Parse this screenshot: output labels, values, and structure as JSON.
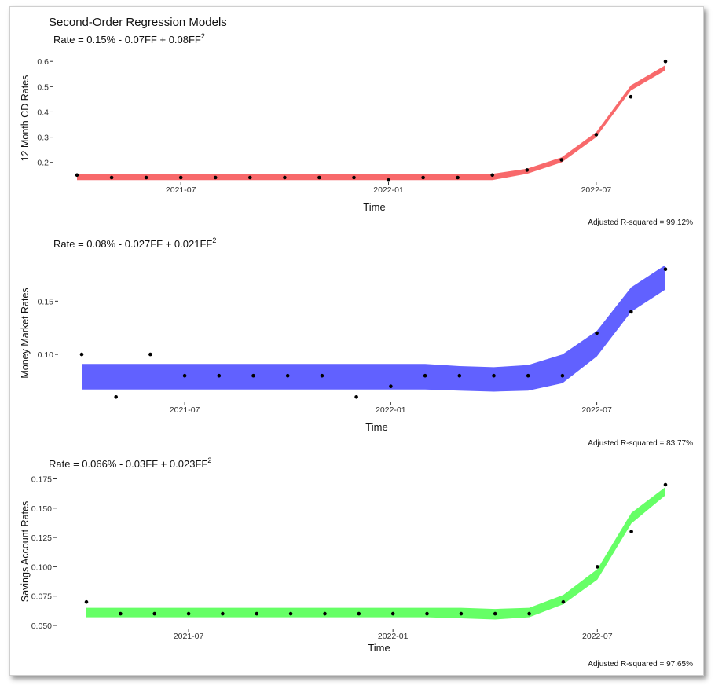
{
  "title": "Second-Order Regression Models",
  "chart_data": [
    {
      "type": "line",
      "subtitle_main": "Rate = 0.15% - 0.07FF + 0.08FF",
      "subtitle_sup": "2",
      "xlabel": "Time",
      "ylabel": "12 Month CD Rates",
      "caption": "Adjusted R-squared = 99.12%",
      "color": "#f8696b",
      "x_ticks": [
        "2021-07",
        "2022-01",
        "2022-07"
      ],
      "y_ticks": [
        "0.2",
        "0.3",
        "0.4",
        "0.5",
        "0.6"
      ],
      "ylim": [
        0.14,
        0.61
      ],
      "x": [
        "2021-04",
        "2021-05",
        "2021-06",
        "2021-07",
        "2021-08",
        "2021-09",
        "2021-10",
        "2021-11",
        "2021-12",
        "2022-01",
        "2022-02",
        "2022-03",
        "2022-04",
        "2022-05",
        "2022-06",
        "2022-07",
        "2022-08",
        "2022-09"
      ],
      "points": [
        0.15,
        0.14,
        0.14,
        0.14,
        0.14,
        0.14,
        0.14,
        0.14,
        0.14,
        0.13,
        0.14,
        0.14,
        0.15,
        0.17,
        0.21,
        0.31,
        0.46,
        0.6
      ],
      "fit_lower": [
        0.13,
        0.13,
        0.13,
        0.13,
        0.13,
        0.13,
        0.13,
        0.13,
        0.13,
        0.13,
        0.13,
        0.13,
        0.13,
        0.155,
        0.2,
        0.3,
        0.485,
        0.565
      ],
      "fit_upper": [
        0.155,
        0.155,
        0.155,
        0.155,
        0.155,
        0.155,
        0.155,
        0.155,
        0.155,
        0.155,
        0.155,
        0.155,
        0.155,
        0.175,
        0.22,
        0.32,
        0.505,
        0.585
      ]
    },
    {
      "type": "line",
      "subtitle_main": "Rate = 0.08% - 0.027FF + 0.021FF",
      "subtitle_sup": "2",
      "xlabel": "Time",
      "ylabel": "Money Market Rates",
      "caption": "Adjusted R-squared = 83.77%",
      "color": "#6161ff",
      "x_ticks": [
        "2021-07",
        "2022-01",
        "2022-07"
      ],
      "y_ticks": [
        "0.10",
        "0.15"
      ],
      "ylim": [
        0.058,
        0.182
      ],
      "x": [
        "2021-04",
        "2021-05",
        "2021-06",
        "2021-07",
        "2021-08",
        "2021-09",
        "2021-10",
        "2021-11",
        "2021-12",
        "2022-01",
        "2022-02",
        "2022-03",
        "2022-04",
        "2022-05",
        "2022-06",
        "2022-07",
        "2022-08",
        "2022-09"
      ],
      "points": [
        0.1,
        0.06,
        0.1,
        0.08,
        0.08,
        0.08,
        0.08,
        0.08,
        0.06,
        0.07,
        0.08,
        0.08,
        0.08,
        0.08,
        0.08,
        0.12,
        0.14,
        0.18
      ],
      "fit_lower": [
        0.067,
        0.067,
        0.067,
        0.067,
        0.067,
        0.067,
        0.067,
        0.067,
        0.067,
        0.067,
        0.067,
        0.066,
        0.065,
        0.066,
        0.073,
        0.098,
        0.14,
        0.161
      ],
      "fit_upper": [
        0.091,
        0.091,
        0.091,
        0.091,
        0.091,
        0.091,
        0.091,
        0.091,
        0.091,
        0.091,
        0.091,
        0.089,
        0.088,
        0.09,
        0.1,
        0.122,
        0.163,
        0.184
      ]
    },
    {
      "type": "line",
      "subtitle_main": "Rate = 0.066% - 0.03FF + 0.023FF",
      "subtitle_sup": "2",
      "xlabel": "Time",
      "ylabel": "Savings Account Rates",
      "caption": "Adjusted R-squared = 97.65%",
      "color": "#66ff66",
      "x_ticks": [
        "2021-07",
        "2022-01",
        "2022-07"
      ],
      "y_ticks": [
        "0.050",
        "0.075",
        "0.100",
        "0.125",
        "0.150",
        "0.175"
      ],
      "ylim": [
        0.05,
        0.176
      ],
      "x": [
        "2021-04",
        "2021-05",
        "2021-06",
        "2021-07",
        "2021-08",
        "2021-09",
        "2021-10",
        "2021-11",
        "2021-12",
        "2022-01",
        "2022-02",
        "2022-03",
        "2022-04",
        "2022-05",
        "2022-06",
        "2022-07",
        "2022-08",
        "2022-09"
      ],
      "points": [
        0.07,
        0.06,
        0.06,
        0.06,
        0.06,
        0.06,
        0.06,
        0.06,
        0.06,
        0.06,
        0.06,
        0.06,
        0.06,
        0.06,
        0.07,
        0.1,
        0.13,
        0.17
      ],
      "fit_lower": [
        0.057,
        0.057,
        0.057,
        0.057,
        0.057,
        0.057,
        0.057,
        0.057,
        0.057,
        0.057,
        0.057,
        0.056,
        0.055,
        0.057,
        0.068,
        0.089,
        0.137,
        0.161
      ],
      "fit_upper": [
        0.065,
        0.065,
        0.065,
        0.065,
        0.065,
        0.065,
        0.065,
        0.065,
        0.065,
        0.065,
        0.065,
        0.065,
        0.064,
        0.065,
        0.076,
        0.098,
        0.146,
        0.168
      ]
    }
  ]
}
